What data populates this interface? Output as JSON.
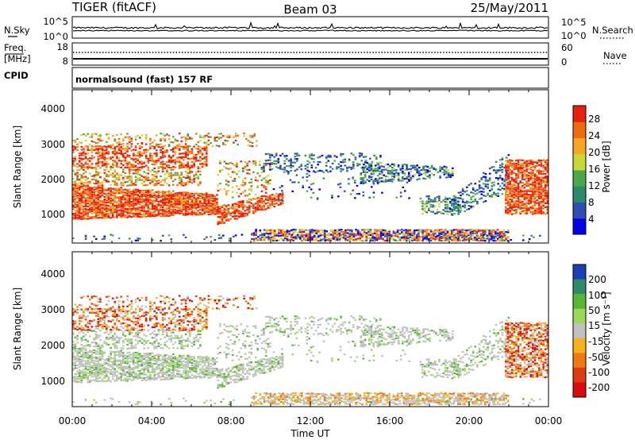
{
  "header": {
    "radar": "TIGER (fitACF)",
    "beam": "Beam 03",
    "date": "25/May/2011"
  },
  "strips": {
    "sky_label": "N.Sky",
    "sky_ticks": [
      "10^5",
      "10^0"
    ],
    "search_label": "N.Search",
    "search_ticks": [
      "10^5",
      "10^0"
    ],
    "freq_label_1": "Freq.",
    "freq_label_2": "[MHz]",
    "freq_ticks": [
      "18",
      "8"
    ],
    "nave_label": "Nave",
    "nave_ticks": [
      "60",
      "0"
    ],
    "cpid_label": "CPID",
    "cpid_value": "normalsound (fast) 157 RF"
  },
  "chart_data": [
    {
      "type": "heatmap",
      "name": "power",
      "ylabel": "Slant Range [km]",
      "yticks": [
        "1000",
        "2000",
        "3000",
        "4000"
      ],
      "ylim": [
        200,
        4500
      ],
      "colorbar_label": "Power [dB]",
      "colorbar_ticks": [
        "4",
        "8",
        "12",
        "16",
        "20",
        "24",
        "28"
      ],
      "colorbar_colors": [
        "#0000ee",
        "#2e4fb0",
        "#2a8b6a",
        "#4aaa4a",
        "#c8d838",
        "#f5a623",
        "#f26a10",
        "#e8200a"
      ]
    },
    {
      "type": "heatmap",
      "name": "velocity",
      "ylabel": "Slant Range [km]",
      "yticks": [
        "1000",
        "2000",
        "3000",
        "4000"
      ],
      "ylim": [
        200,
        4500
      ],
      "xlabel": "Time UT",
      "xticks": [
        "00:00",
        "04:00",
        "08:00",
        "12:00",
        "16:00",
        "20:00",
        "00:00"
      ],
      "colorbar_label": "Velocity [m s⁻¹]",
      "colorbar_ticks": [
        "200",
        "100",
        "50",
        "15",
        "-15",
        "-50",
        "-100",
        "-200"
      ],
      "colorbar_colors": [
        "#1c3fb8",
        "#2f8a68",
        "#55b835",
        "#9ad858",
        "#c0c0c0",
        "#f6b21a",
        "#f07a12",
        "#e03a10",
        "#d80c0c"
      ]
    }
  ]
}
